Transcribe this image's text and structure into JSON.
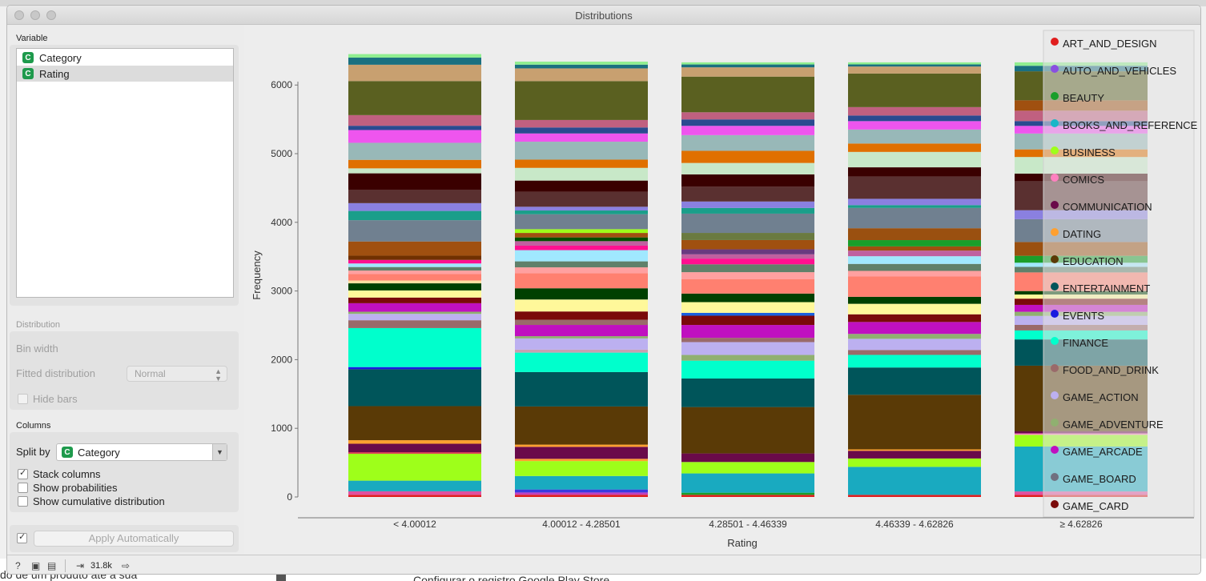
{
  "window": {
    "title": "Distributions"
  },
  "background": {
    "left_text": "do de um produto até a sua",
    "middle_text": "Configurar o registro Google Play Store"
  },
  "sidebar": {
    "variable_label": "Variable",
    "variables": [
      {
        "label": "Category",
        "badge": "C",
        "selected": false
      },
      {
        "label": "Rating",
        "badge": "C",
        "selected": true
      }
    ],
    "distribution_label": "Distribution",
    "bin_width_label": "Bin width",
    "fitted_label": "Fitted distribution",
    "fitted_value": "Normal",
    "hide_bars_label": "Hide bars",
    "columns_label": "Columns",
    "split_by_label": "Split by",
    "split_by_value": "Category",
    "split_badge": "C",
    "stack_columns_label": "Stack columns",
    "stack_columns_checked": true,
    "show_prob_label": "Show probabilities",
    "show_cum_label": "Show cumulative distribution",
    "apply_checked": true,
    "apply_label": "Apply Automatically"
  },
  "status": {
    "count": "31.8k"
  },
  "legend": [
    {
      "name": "ART_AND_DESIGN",
      "color": "#e01e1e"
    },
    {
      "name": "AUTO_AND_VEHICLES",
      "color": "#8a4fe0"
    },
    {
      "name": "BEAUTY",
      "color": "#1a9e2a"
    },
    {
      "name": "BOOKS_AND_REFERENCE",
      "color": "#19b6c8"
    },
    {
      "name": "BUSINESS",
      "color": "#9eff1a"
    },
    {
      "name": "COMICS",
      "color": "#ff80c0"
    },
    {
      "name": "COMMUNICATION",
      "color": "#6a0a4a"
    },
    {
      "name": "DATING",
      "color": "#ffa030"
    },
    {
      "name": "EDUCATION",
      "color": "#5a3a06"
    },
    {
      "name": "ENTERTAINMENT",
      "color": "#00555a"
    },
    {
      "name": "EVENTS",
      "color": "#1a1ae0"
    },
    {
      "name": "FINANCE",
      "color": "#00ffcc"
    },
    {
      "name": "FOOD_AND_DRINK",
      "color": "#9a6a6a"
    },
    {
      "name": "GAME_ACTION",
      "color": "#bcb0f0"
    },
    {
      "name": "GAME_ADVENTURE",
      "color": "#90b070"
    },
    {
      "name": "GAME_ARCADE",
      "color": "#c010c0"
    },
    {
      "name": "GAME_BOARD",
      "color": "#707080"
    },
    {
      "name": "GAME_CARD",
      "color": "#7a0a0a"
    }
  ],
  "chart_data": {
    "type": "bar",
    "stacked": true,
    "xlabel": "Rating",
    "ylabel": "Frequency",
    "ylim": [
      0,
      6500
    ],
    "yticks": [
      0,
      1000,
      2000,
      3000,
      4000,
      5000,
      6000
    ],
    "categories": [
      "< 4.00012",
      "4.00012 - 4.28501",
      "4.28501 - 4.46339",
      "4.46339 - 4.62826",
      "≥ 4.62826"
    ],
    "totals": [
      6450,
      6340,
      6330,
      6330,
      6330
    ],
    "bars": [
      [
        [
          "#e01e1e",
          30
        ],
        [
          "#e050a0",
          50
        ],
        [
          "#19aac0",
          150
        ],
        [
          "#9eff1a",
          380
        ],
        [
          "#e0304a",
          20
        ],
        [
          "#6a0a4a",
          120
        ],
        [
          "#ffa030",
          50
        ],
        [
          "#5a3a06",
          480
        ],
        [
          "#00555a",
          520
        ],
        [
          "#1a1ae0",
          30
        ],
        [
          "#00ffcc",
          550
        ],
        [
          "#9a6a6a",
          110
        ],
        [
          "#bcb0f0",
          90
        ],
        [
          "#90b070",
          30
        ],
        [
          "#c010c0",
          120
        ],
        [
          "#7a0a0a",
          80
        ],
        [
          "#fff89a",
          100
        ],
        [
          "#004000",
          100
        ],
        [
          "#ffe0a0",
          40
        ],
        [
          "#ff8070",
          90
        ],
        [
          "#ffa0a0",
          50
        ],
        [
          "#60806a",
          50
        ],
        [
          "#a0e8ff",
          50
        ],
        [
          "#ff1090",
          50
        ],
        [
          "#703000",
          60
        ],
        [
          "#a05010",
          200
        ],
        [
          "#708090",
          300
        ],
        [
          "#1a9e8a",
          130
        ],
        [
          "#8a80e0",
          110
        ],
        [
          "#5a3030",
          190
        ],
        [
          "#3a0000",
          230
        ],
        [
          "#c8e8c8",
          70
        ],
        [
          "#e07000",
          120
        ],
        [
          "#98b8b8",
          240
        ],
        [
          "#ee55ee",
          180
        ],
        [
          "#2a4a90",
          60
        ],
        [
          "#c06080",
          150
        ],
        [
          "#5a6020",
          480
        ],
        [
          "#c8a070",
          230
        ],
        [
          "#1a7080",
          100
        ],
        [
          "#90ee90",
          50
        ]
      ],
      [
        [
          "#e01e1e",
          30
        ],
        [
          "#c040c0",
          30
        ],
        [
          "#3a3ae0",
          40
        ],
        [
          "#19aac0",
          180
        ],
        [
          "#9eff1a",
          200
        ],
        [
          "#ffa030",
          30
        ],
        [
          "#6a0a4a",
          160
        ],
        [
          "#ffa030",
          30
        ],
        [
          "#5a3a06",
          510
        ],
        [
          "#00555a",
          460
        ],
        [
          "#00ffcc",
          260
        ],
        [
          "#c8a0b0",
          40
        ],
        [
          "#bcb0f0",
          150
        ],
        [
          "#90b070",
          30
        ],
        [
          "#c010c0",
          150
        ],
        [
          "#9a6a6a",
          70
        ],
        [
          "#7a0a0a",
          110
        ],
        [
          "#fff89a",
          160
        ],
        [
          "#004000",
          150
        ],
        [
          "#ff8070",
          200
        ],
        [
          "#ffa0a0",
          80
        ],
        [
          "#60806a",
          80
        ],
        [
          "#a0e8ff",
          150
        ],
        [
          "#ff1090",
          60
        ],
        [
          "#c060a0",
          60
        ],
        [
          "#005000",
          50
        ],
        [
          "#a05010",
          60
        ],
        [
          "#9eff1a",
          50
        ],
        [
          "#708090",
          200
        ],
        [
          "#1a9e8a",
          50
        ],
        [
          "#8a80e0",
          50
        ],
        [
          "#5a3030",
          200
        ],
        [
          "#3a0000",
          150
        ],
        [
          "#c8e8c8",
          170
        ],
        [
          "#e07000",
          110
        ],
        [
          "#98b8b8",
          240
        ],
        [
          "#ee55ee",
          110
        ],
        [
          "#2a4a90",
          80
        ],
        [
          "#c06080",
          100
        ],
        [
          "#5a6020",
          520
        ],
        [
          "#c8a070",
          170
        ],
        [
          "#1a7080",
          50
        ],
        [
          "#90ee90",
          40
        ]
      ],
      [
        [
          "#e01e1e",
          30
        ],
        [
          "#1a9e2a",
          30
        ],
        [
          "#19aac0",
          270
        ],
        [
          "#9eff1a",
          160
        ],
        [
          "#6a0a4a",
          120
        ],
        [
          "#5a3a06",
          650
        ],
        [
          "#00555a",
          400
        ],
        [
          "#00ffcc",
          250
        ],
        [
          "#90b070",
          80
        ],
        [
          "#bcb0f0",
          180
        ],
        [
          "#9a6a6a",
          60
        ],
        [
          "#c010c0",
          180
        ],
        [
          "#7a0a0a",
          130
        ],
        [
          "#1a60e0",
          40
        ],
        [
          "#fff89a",
          150
        ],
        [
          "#004000",
          120
        ],
        [
          "#ff8070",
          200
        ],
        [
          "#ffa0a0",
          100
        ],
        [
          "#60806a",
          110
        ],
        [
          "#ff1090",
          80
        ],
        [
          "#c060a0",
          60
        ],
        [
          "#6a3a80",
          70
        ],
        [
          "#a05010",
          130
        ],
        [
          "#6a7a40",
          100
        ],
        [
          "#708090",
          270
        ],
        [
          "#1a9e8a",
          80
        ],
        [
          "#8a80e0",
          90
        ],
        [
          "#5a3030",
          210
        ],
        [
          "#3a0000",
          170
        ],
        [
          "#c8e8c8",
          160
        ],
        [
          "#e07000",
          170
        ],
        [
          "#98b8b8",
          220
        ],
        [
          "#ee55ee",
          130
        ],
        [
          "#2a4a90",
          90
        ],
        [
          "#c06080",
          100
        ],
        [
          "#5a6020",
          500
        ],
        [
          "#c8a070",
          130
        ],
        [
          "#1a7080",
          40
        ],
        [
          "#90ee90",
          30
        ]
      ],
      [
        [
          "#e01e1e",
          30
        ],
        [
          "#19aac0",
          400
        ],
        [
          "#9eff1a",
          120
        ],
        [
          "#6a0a4a",
          110
        ],
        [
          "#ffa030",
          20
        ],
        [
          "#5a3a06",
          780
        ],
        [
          "#00555a",
          390
        ],
        [
          "#00ffcc",
          180
        ],
        [
          "#9a6a6a",
          70
        ],
        [
          "#bcb0f0",
          160
        ],
        [
          "#90b070",
          70
        ],
        [
          "#c010c0",
          170
        ],
        [
          "#7a0a0a",
          110
        ],
        [
          "#fff89a",
          150
        ],
        [
          "#004000",
          100
        ],
        [
          "#ff8070",
          290
        ],
        [
          "#ffa0a0",
          80
        ],
        [
          "#60806a",
          100
        ],
        [
          "#a0e8ff",
          110
        ],
        [
          "#c060a0",
          80
        ],
        [
          "#a05010",
          60
        ],
        [
          "#1a9e2a",
          90
        ],
        [
          "#9a5010",
          170
        ],
        [
          "#708090",
          290
        ],
        [
          "#1a9e8a",
          40
        ],
        [
          "#8a80e0",
          90
        ],
        [
          "#5a3030",
          320
        ],
        [
          "#3a0000",
          130
        ],
        [
          "#c8e8c8",
          220
        ],
        [
          "#e07000",
          120
        ],
        [
          "#98b8b8",
          200
        ],
        [
          "#ee55ee",
          120
        ],
        [
          "#2a4a90",
          80
        ],
        [
          "#c06080",
          120
        ],
        [
          "#5a6020",
          480
        ],
        [
          "#c8a070",
          100
        ],
        [
          "#1a7080",
          30
        ],
        [
          "#90ee90",
          30
        ]
      ],
      [
        [
          "#e01e1e",
          30
        ],
        [
          "#e050a0",
          50
        ],
        [
          "#19aac0",
          650
        ],
        [
          "#9eff1a",
          170
        ],
        [
          "#ff80c0",
          20
        ],
        [
          "#6a0a4a",
          30
        ],
        [
          "#5a3a06",
          950
        ],
        [
          "#00555a",
          380
        ],
        [
          "#00ffcc",
          130
        ],
        [
          "#9a6a6a",
          80
        ],
        [
          "#bcb0f0",
          130
        ],
        [
          "#90b070",
          60
        ],
        [
          "#c010c0",
          100
        ],
        [
          "#7a0a0a",
          90
        ],
        [
          "#fff89a",
          60
        ],
        [
          "#004000",
          50
        ],
        [
          "#ff8070",
          270
        ],
        [
          "#60806a",
          80
        ],
        [
          "#a0e8ff",
          60
        ],
        [
          "#1a9e2a",
          100
        ],
        [
          "#9a5010",
          200
        ],
        [
          "#708090",
          330
        ],
        [
          "#8a80e0",
          130
        ],
        [
          "#5a3030",
          420
        ],
        [
          "#3a0000",
          110
        ],
        [
          "#c8e8c8",
          240
        ],
        [
          "#e07000",
          110
        ],
        [
          "#98b8b8",
          230
        ],
        [
          "#ee55ee",
          110
        ],
        [
          "#2a4a90",
          70
        ],
        [
          "#c06080",
          150
        ],
        [
          "#a05010",
          150
        ],
        [
          "#5a6020",
          420
        ],
        [
          "#1a7080",
          80
        ],
        [
          "#90ee90",
          50
        ]
      ]
    ]
  }
}
